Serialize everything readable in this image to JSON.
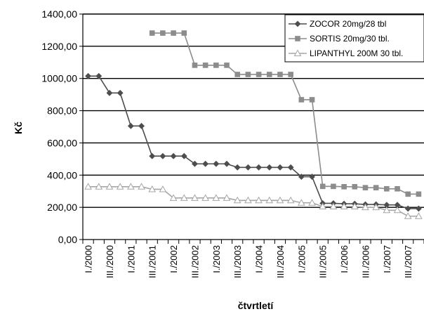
{
  "chart_data": {
    "type": "line",
    "ylabel": "Kč",
    "xlabel": "čtvrtletí",
    "ylim": [
      0,
      1400
    ],
    "yticks": [
      "0,00",
      "200,00",
      "400,00",
      "600,00",
      "800,00",
      "1000,00",
      "1200,00",
      "1400,00"
    ],
    "ytick_values": [
      0,
      200,
      400,
      600,
      800,
      1000,
      1200,
      1400
    ],
    "xtick_labels": [
      "I./2000",
      "III./2000",
      "I./2001",
      "III./2001",
      "I./2002",
      "III./2002",
      "I./2003",
      "III./2003",
      "I./2004",
      "III./2004",
      "I./2005",
      "III./2005",
      "I./2006",
      "III./2006",
      "I./2007",
      "III./2007"
    ],
    "x_categories": [
      "I./2000",
      "II./2000",
      "III./2000",
      "IV./2000",
      "I./2001",
      "II./2001",
      "III./2001",
      "IV./2001",
      "I./2002",
      "II./2002",
      "III./2002",
      "IV./2002",
      "I./2003",
      "II./2003",
      "III./2003",
      "IV./2003",
      "I./2004",
      "II./2004",
      "III./2004",
      "IV./2004",
      "I./2005",
      "II./2005",
      "III./2005",
      "IV./2005",
      "I./2006",
      "II./2006",
      "III./2006",
      "IV./2006",
      "I./2007",
      "II./2007",
      "III./2007",
      "IV./2007"
    ],
    "grid": "horizontal",
    "legend_position": "top-right",
    "series": [
      {
        "name": "ZOCOR 20mg/28 tbl",
        "marker": "diamond",
        "color": "#4d4d4d",
        "values": [
          1015,
          1015,
          910,
          910,
          705,
          705,
          518,
          518,
          518,
          518,
          470,
          470,
          470,
          470,
          448,
          448,
          448,
          448,
          448,
          448,
          390,
          390,
          225,
          225,
          222,
          222,
          218,
          218,
          215,
          215,
          192,
          192
        ]
      },
      {
        "name": "SORTIS 20mg/30 tbl.",
        "marker": "square",
        "color": "#8c8c8c",
        "values": [
          null,
          null,
          null,
          null,
          null,
          null,
          1282,
          1282,
          1282,
          1282,
          1082,
          1082,
          1082,
          1082,
          1025,
          1025,
          1025,
          1025,
          1025,
          1025,
          868,
          868,
          330,
          330,
          328,
          328,
          322,
          322,
          315,
          315,
          282,
          282
        ]
      },
      {
        "name": "LIPANTHYL 200M 30 tbl.",
        "marker": "triangle",
        "color": "#a6a6a6",
        "values": [
          328,
          328,
          328,
          328,
          328,
          328,
          312,
          312,
          258,
          258,
          258,
          258,
          258,
          258,
          243,
          243,
          243,
          243,
          243,
          243,
          228,
          228,
          205,
          205,
          205,
          205,
          200,
          200,
          182,
          182,
          145,
          145
        ]
      }
    ]
  }
}
